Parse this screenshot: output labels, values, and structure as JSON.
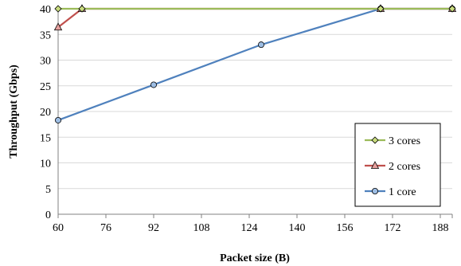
{
  "chart_data": {
    "type": "line",
    "xlabel": "Packet size (B)",
    "ylabel": "Throughput (Gbps)",
    "xlim": [
      60,
      192
    ],
    "ylim": [
      0,
      40
    ],
    "xticks": [
      60,
      76,
      92,
      108,
      124,
      140,
      156,
      172,
      188
    ],
    "yticks": [
      0,
      5,
      10,
      15,
      20,
      25,
      30,
      35,
      40
    ],
    "grid": "horizontal",
    "legend_position": "bottom-right",
    "series": [
      {
        "name": "3 cores",
        "color": "#9bbb59",
        "marker": "diamond",
        "marker_fill": "#c9dc7f",
        "x": [
          60,
          68,
          168,
          192
        ],
        "y": [
          40,
          40,
          40,
          40
        ]
      },
      {
        "name": "2 cores",
        "color": "#c0504d",
        "marker": "triangle",
        "marker_fill": "#e6a09e",
        "x": [
          60,
          68,
          168,
          192
        ],
        "y": [
          36.4,
          40,
          40,
          40
        ]
      },
      {
        "name": "1 core",
        "color": "#4f81bd",
        "marker": "circle",
        "marker_fill": "#9dbde3",
        "x": [
          60,
          92,
          128,
          168,
          192
        ],
        "y": [
          18.3,
          25.2,
          33.0,
          40,
          40
        ]
      }
    ]
  }
}
